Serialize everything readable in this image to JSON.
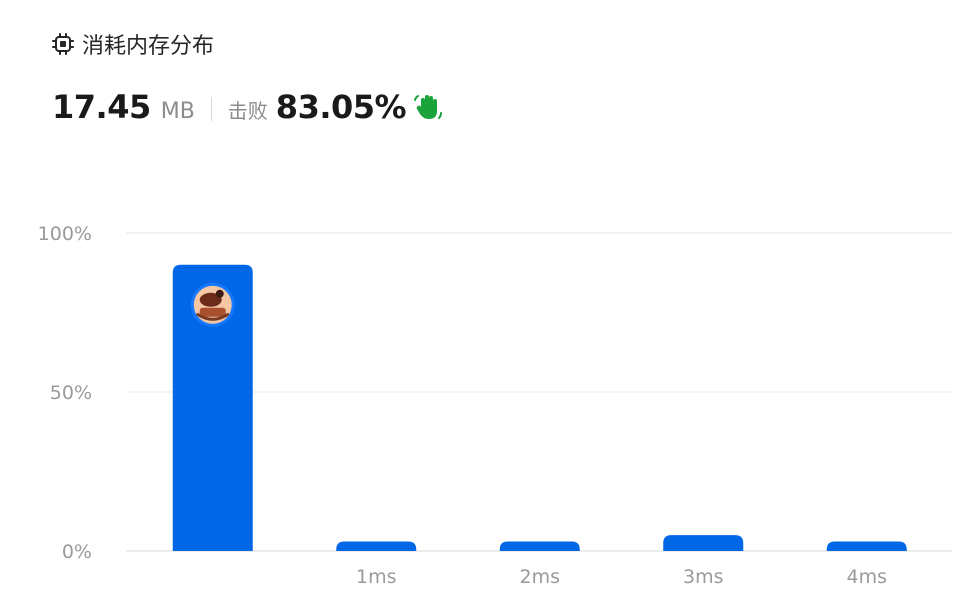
{
  "header": {
    "title": "消耗内存分布",
    "icon": "chip-icon"
  },
  "stats": {
    "memory_value": "17.45",
    "memory_unit": "MB",
    "beat_label": "击败",
    "beat_value": "83.05%",
    "beat_icon": "waving-hand-icon"
  },
  "chart_data": {
    "type": "bar",
    "categories": [
      "",
      "1ms",
      "2ms",
      "3ms",
      "4ms"
    ],
    "values": [
      90,
      3,
      3,
      5,
      3
    ],
    "ylim": [
      0,
      100
    ],
    "yticks": [
      {
        "value": 0,
        "label": "0%"
      },
      {
        "value": 50,
        "label": "50%"
      },
      {
        "value": 100,
        "label": "100%"
      }
    ],
    "grid": true,
    "bar_color": "#0067e6",
    "highlight_index": 0
  }
}
